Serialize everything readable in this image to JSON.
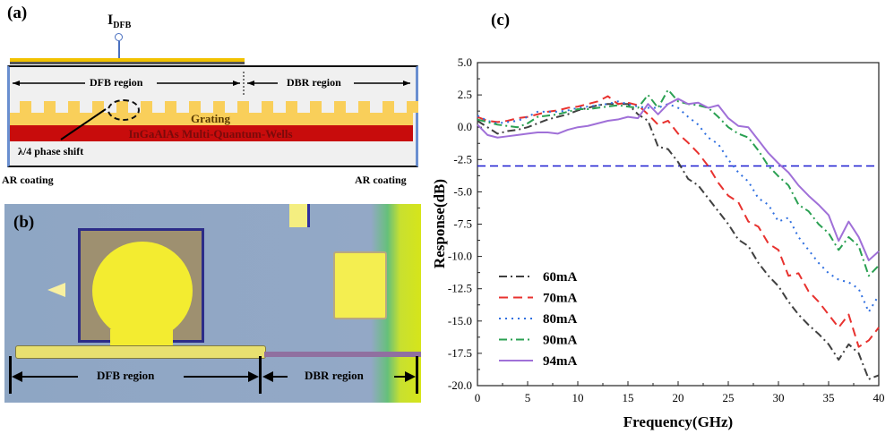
{
  "panel_a": {
    "label": "(a)",
    "current_label": "I",
    "current_sub": "DFB",
    "dfb_region": "DFB region",
    "dbr_region": "DBR region",
    "grating": "Grating",
    "mqw": "InGaAlAs Multi-Quantum-Wells",
    "phase_shift": "λ/4 phase shift",
    "ar_left": "AR coating",
    "ar_right": "AR coating"
  },
  "panel_b": {
    "label": "(b)",
    "dfb_region": "DFB region",
    "dbr_region": "DBR region"
  },
  "panel_c": {
    "label": "(c)"
  },
  "chart_data": {
    "type": "line",
    "title": "",
    "xlabel": "Frequency(GHz)",
    "ylabel": "Response(dB)",
    "xlim": [
      0,
      40
    ],
    "ylim": [
      -20,
      5
    ],
    "xticks": [
      "0",
      "5",
      "10",
      "15",
      "20",
      "25",
      "30",
      "35",
      "40"
    ],
    "yticks": [
      "5.0",
      "2.5",
      "0.0",
      "-2.5",
      "-5.0",
      "-7.5",
      "-10.0",
      "-12.5",
      "-15.0",
      "-17.5",
      "-20.0"
    ],
    "grid": false,
    "legend_position": "bottom-left",
    "reference_line": {
      "y": -3,
      "color": "#1a1ad0",
      "style": "dashed"
    },
    "x": [
      0,
      1,
      2,
      3,
      4,
      5,
      6,
      7,
      8,
      9,
      10,
      11,
      12,
      13,
      14,
      15,
      16,
      17,
      18,
      19,
      20,
      21,
      22,
      23,
      24,
      25,
      26,
      27,
      28,
      29,
      30,
      31,
      32,
      33,
      34,
      35,
      36,
      37,
      38,
      39,
      40
    ],
    "series": [
      {
        "name": "60mA",
        "color": "#404040",
        "style": "dashdot",
        "values": [
          0.5,
          0.0,
          -0.5,
          -0.3,
          -0.2,
          0.0,
          0.3,
          0.6,
          0.8,
          1.0,
          1.3,
          1.5,
          1.7,
          1.8,
          1.8,
          1.8,
          1.0,
          0.5,
          -1.5,
          -1.7,
          -2.7,
          -4.0,
          -4.5,
          -5.5,
          -6.5,
          -7.5,
          -8.7,
          -9.2,
          -10.5,
          -11.5,
          -12.3,
          -13.5,
          -14.5,
          -15.3,
          -16.0,
          -16.8,
          -18.0,
          -16.8,
          -17.5,
          -19.5,
          -19.2
        ]
      },
      {
        "name": "70mA",
        "color": "#e8322f",
        "style": "dashed",
        "values": [
          0.8,
          0.5,
          0.4,
          0.5,
          0.7,
          0.8,
          1.0,
          1.2,
          1.3,
          1.5,
          1.6,
          1.8,
          2.0,
          2.4,
          1.8,
          1.9,
          1.7,
          1.0,
          0.2,
          0.5,
          -0.5,
          -1.2,
          -2.0,
          -3.0,
          -4.3,
          -5.3,
          -5.8,
          -7.3,
          -7.7,
          -9.0,
          -9.5,
          -11.5,
          -11.3,
          -12.7,
          -13.5,
          -14.5,
          -15.5,
          -14.5,
          -17.0,
          -16.5,
          -15.5
        ]
      },
      {
        "name": "80mA",
        "color": "#2f6fe0",
        "style": "dotted",
        "values": [
          0.9,
          0.5,
          0.3,
          0.4,
          0.5,
          0.8,
          1.2,
          1.2,
          1.2,
          1.3,
          1.5,
          1.6,
          1.7,
          1.8,
          2.0,
          1.8,
          1.6,
          1.5,
          1.5,
          1.8,
          1.5,
          0.8,
          0.2,
          -0.8,
          -1.3,
          -2.5,
          -3.5,
          -4.2,
          -5.5,
          -6.0,
          -7.3,
          -7.0,
          -8.5,
          -9.5,
          -10.5,
          -11.3,
          -11.8,
          -12.0,
          -12.5,
          -14.3,
          -13.0
        ]
      },
      {
        "name": "90mA",
        "color": "#2aa052",
        "style": "dashdot",
        "values": [
          0.6,
          0.4,
          0.2,
          0.1,
          0.0,
          0.3,
          0.8,
          0.9,
          1.0,
          1.2,
          1.4,
          1.4,
          1.5,
          1.6,
          1.7,
          1.6,
          1.5,
          2.5,
          1.5,
          2.9,
          2.0,
          1.8,
          1.7,
          1.5,
          0.8,
          0.0,
          -0.5,
          -0.8,
          -1.8,
          -3.0,
          -3.8,
          -4.5,
          -6.0,
          -6.5,
          -7.5,
          -8.2,
          -9.5,
          -8.5,
          -9.2,
          -11.5,
          -10.7
        ]
      },
      {
        "name": "94mA",
        "color": "#a070d8",
        "style": "solid",
        "values": [
          0.2,
          -0.6,
          -0.8,
          -0.7,
          -0.6,
          -0.5,
          -0.4,
          -0.4,
          -0.5,
          -0.2,
          0.0,
          0.1,
          0.3,
          0.5,
          0.6,
          0.8,
          0.7,
          1.8,
          1.0,
          1.8,
          2.2,
          1.8,
          1.9,
          1.5,
          1.7,
          0.7,
          0.1,
          0.0,
          -1.0,
          -2.0,
          -2.8,
          -3.5,
          -4.5,
          -5.3,
          -6.0,
          -6.8,
          -8.8,
          -7.3,
          -8.5,
          -10.3,
          -9.6
        ]
      }
    ]
  }
}
